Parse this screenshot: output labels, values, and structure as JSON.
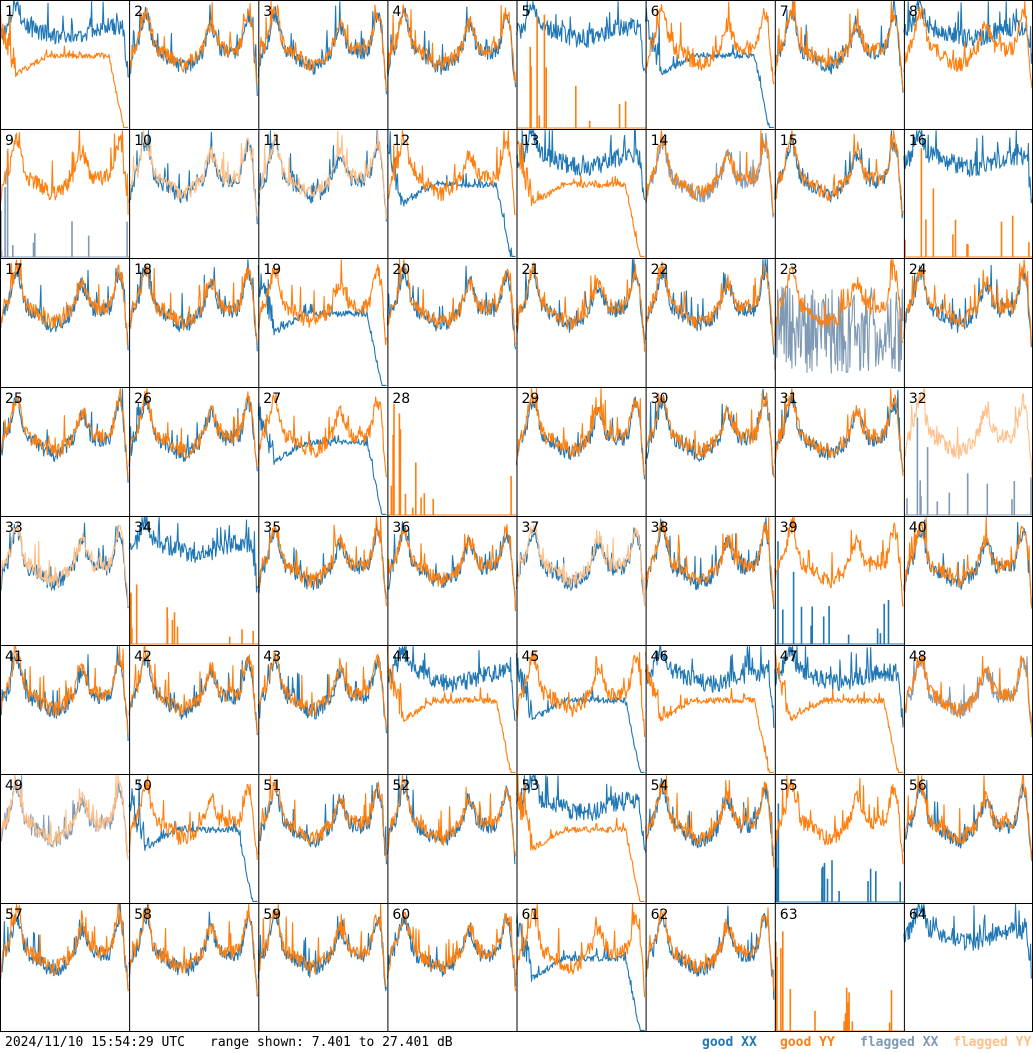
{
  "timestamp": "2024/11/10 15:54:29 UTC",
  "range_text": "range shown: 7.401 to 27.401 dB",
  "legend": {
    "good_xx": "good XX",
    "good_yy": "good YY",
    "flagged_xx": "flagged XX",
    "flagged_yy": "flagged YY"
  },
  "colors": {
    "good_xx": "#1f77b4",
    "good_yy": "#ff7f0e",
    "flagged_xx": "#7f9ab5",
    "flagged_yy": "#ffbf87"
  },
  "chart_data": {
    "type": "line",
    "grid": {
      "rows": 8,
      "cols": 8
    },
    "ylim": [
      7.401,
      27.401
    ],
    "panels": [
      {
        "id": "1",
        "xx": "good",
        "yy": "good",
        "xx_shape": "elevated",
        "yy_shape": "rolloff"
      },
      {
        "id": "2",
        "xx": "good",
        "yy": "good",
        "xx_shape": "normal",
        "yy_shape": "normal"
      },
      {
        "id": "3",
        "xx": "good",
        "yy": "good",
        "xx_shape": "normal",
        "yy_shape": "normal"
      },
      {
        "id": "4",
        "xx": "good",
        "yy": "good",
        "xx_shape": "normal",
        "yy_shape": "normal"
      },
      {
        "id": "5",
        "xx": "good",
        "yy": "good",
        "xx_shape": "elevated",
        "yy_shape": "spikes"
      },
      {
        "id": "6",
        "xx": "good",
        "yy": "good",
        "xx_shape": "rolloff",
        "yy_shape": "normal"
      },
      {
        "id": "7",
        "xx": "good",
        "yy": "good",
        "xx_shape": "normal",
        "yy_shape": "normal"
      },
      {
        "id": "8",
        "xx": "good",
        "yy": "good",
        "xx_shape": "elevated",
        "yy_shape": "normal"
      },
      {
        "id": "9",
        "xx": "flagged",
        "yy": "good",
        "xx_shape": "spikes",
        "yy_shape": "normal"
      },
      {
        "id": "10",
        "xx": "good",
        "yy": "flagged",
        "xx_shape": "normal",
        "yy_shape": "normal"
      },
      {
        "id": "11",
        "xx": "good",
        "yy": "flagged",
        "xx_shape": "normal",
        "yy_shape": "normal"
      },
      {
        "id": "12",
        "xx": "good",
        "yy": "good",
        "xx_shape": "rolloff",
        "yy_shape": "normal"
      },
      {
        "id": "13",
        "xx": "good",
        "yy": "good",
        "xx_shape": "elevated",
        "yy_shape": "rolloff"
      },
      {
        "id": "14",
        "xx": "flagged",
        "yy": "good",
        "xx_shape": "normal",
        "yy_shape": "normal"
      },
      {
        "id": "15",
        "xx": "good",
        "yy": "good",
        "xx_shape": "normal",
        "yy_shape": "normal"
      },
      {
        "id": "16",
        "xx": "good",
        "yy": "good",
        "xx_shape": "elevated",
        "yy_shape": "spikes"
      },
      {
        "id": "17",
        "xx": "good",
        "yy": "good",
        "xx_shape": "normal",
        "yy_shape": "normal"
      },
      {
        "id": "18",
        "xx": "good",
        "yy": "good",
        "xx_shape": "normal",
        "yy_shape": "normal"
      },
      {
        "id": "19",
        "xx": "good",
        "yy": "good",
        "xx_shape": "rolloff",
        "yy_shape": "normal"
      },
      {
        "id": "20",
        "xx": "good",
        "yy": "good",
        "xx_shape": "normal",
        "yy_shape": "normal"
      },
      {
        "id": "21",
        "xx": "good",
        "yy": "good",
        "xx_shape": "normal",
        "yy_shape": "normal"
      },
      {
        "id": "22",
        "xx": "good",
        "yy": "good",
        "xx_shape": "normal",
        "yy_shape": "normal"
      },
      {
        "id": "23",
        "xx": "flagged",
        "yy": "good",
        "xx_shape": "noisy",
        "yy_shape": "normal"
      },
      {
        "id": "24",
        "xx": "good",
        "yy": "good",
        "xx_shape": "normal",
        "yy_shape": "normal"
      },
      {
        "id": "25",
        "xx": "good",
        "yy": "good",
        "xx_shape": "normal",
        "yy_shape": "normal"
      },
      {
        "id": "26",
        "xx": "good",
        "yy": "good",
        "xx_shape": "normal",
        "yy_shape": "normal"
      },
      {
        "id": "27",
        "xx": "good",
        "yy": "good",
        "xx_shape": "rolloff",
        "yy_shape": "normal"
      },
      {
        "id": "28",
        "xx": "good",
        "yy": "good",
        "xx_shape": "none",
        "yy_shape": "spikes"
      },
      {
        "id": "29",
        "xx": "good",
        "yy": "good",
        "xx_shape": "normal",
        "yy_shape": "normal"
      },
      {
        "id": "30",
        "xx": "good",
        "yy": "good",
        "xx_shape": "normal",
        "yy_shape": "normal"
      },
      {
        "id": "31",
        "xx": "good",
        "yy": "good",
        "xx_shape": "normal",
        "yy_shape": "normal"
      },
      {
        "id": "32",
        "xx": "flagged",
        "yy": "flagged",
        "xx_shape": "spikes",
        "yy_shape": "normal"
      },
      {
        "id": "33",
        "xx": "good",
        "yy": "flagged",
        "xx_shape": "normal",
        "yy_shape": "normal"
      },
      {
        "id": "34",
        "xx": "good",
        "yy": "good",
        "xx_shape": "elevated",
        "yy_shape": "spikes"
      },
      {
        "id": "35",
        "xx": "good",
        "yy": "good",
        "xx_shape": "normal",
        "yy_shape": "normal"
      },
      {
        "id": "36",
        "xx": "good",
        "yy": "good",
        "xx_shape": "normal",
        "yy_shape": "normal"
      },
      {
        "id": "37",
        "xx": "good",
        "yy": "flagged",
        "xx_shape": "normal",
        "yy_shape": "normal"
      },
      {
        "id": "38",
        "xx": "good",
        "yy": "good",
        "xx_shape": "normal",
        "yy_shape": "normal"
      },
      {
        "id": "39",
        "xx": "good",
        "yy": "good",
        "xx_shape": "spikes",
        "yy_shape": "normal"
      },
      {
        "id": "40",
        "xx": "good",
        "yy": "good",
        "xx_shape": "normal",
        "yy_shape": "normal"
      },
      {
        "id": "41",
        "xx": "good",
        "yy": "good",
        "xx_shape": "normal",
        "yy_shape": "normal"
      },
      {
        "id": "42",
        "xx": "good",
        "yy": "good",
        "xx_shape": "normal",
        "yy_shape": "normal"
      },
      {
        "id": "43",
        "xx": "good",
        "yy": "good",
        "xx_shape": "normal",
        "yy_shape": "normal"
      },
      {
        "id": "44",
        "xx": "good",
        "yy": "good",
        "xx_shape": "elevated",
        "yy_shape": "rolloff"
      },
      {
        "id": "45",
        "xx": "good",
        "yy": "good",
        "xx_shape": "rolloff",
        "yy_shape": "normal"
      },
      {
        "id": "46",
        "xx": "good",
        "yy": "good",
        "xx_shape": "elevated",
        "yy_shape": "rolloff"
      },
      {
        "id": "47",
        "xx": "good",
        "yy": "good",
        "xx_shape": "elevated",
        "yy_shape": "rolloff"
      },
      {
        "id": "48",
        "xx": "flagged",
        "yy": "good",
        "xx_shape": "normal",
        "yy_shape": "normal"
      },
      {
        "id": "49",
        "xx": "flagged",
        "yy": "flagged",
        "xx_shape": "normal",
        "yy_shape": "normal"
      },
      {
        "id": "50",
        "xx": "good",
        "yy": "good",
        "xx_shape": "rolloff",
        "yy_shape": "normal"
      },
      {
        "id": "51",
        "xx": "good",
        "yy": "good",
        "xx_shape": "normal",
        "yy_shape": "normal"
      },
      {
        "id": "52",
        "xx": "good",
        "yy": "good",
        "xx_shape": "normal",
        "yy_shape": "normal"
      },
      {
        "id": "53",
        "xx": "good",
        "yy": "good",
        "xx_shape": "elevated",
        "yy_shape": "rolloff"
      },
      {
        "id": "54",
        "xx": "good",
        "yy": "good",
        "xx_shape": "normal",
        "yy_shape": "normal"
      },
      {
        "id": "55",
        "xx": "good",
        "yy": "good",
        "xx_shape": "spikes",
        "yy_shape": "normal"
      },
      {
        "id": "56",
        "xx": "good",
        "yy": "good",
        "xx_shape": "normal",
        "yy_shape": "normal"
      },
      {
        "id": "57",
        "xx": "good",
        "yy": "good",
        "xx_shape": "normal",
        "yy_shape": "normal"
      },
      {
        "id": "58",
        "xx": "good",
        "yy": "good",
        "xx_shape": "normal",
        "yy_shape": "normal"
      },
      {
        "id": "59",
        "xx": "good",
        "yy": "good",
        "xx_shape": "normal",
        "yy_shape": "normal"
      },
      {
        "id": "60",
        "xx": "good",
        "yy": "good",
        "xx_shape": "normal",
        "yy_shape": "normal"
      },
      {
        "id": "61",
        "xx": "good",
        "yy": "good",
        "xx_shape": "rolloff",
        "yy_shape": "normal"
      },
      {
        "id": "62",
        "xx": "good",
        "yy": "good",
        "xx_shape": "normal",
        "yy_shape": "normal"
      },
      {
        "id": "63",
        "xx": "good",
        "yy": "good",
        "xx_shape": "none",
        "yy_shape": "spikes"
      },
      {
        "id": "64",
        "xx": "good",
        "yy": "good",
        "xx_shape": "elevated",
        "yy_shape": "none"
      }
    ]
  }
}
